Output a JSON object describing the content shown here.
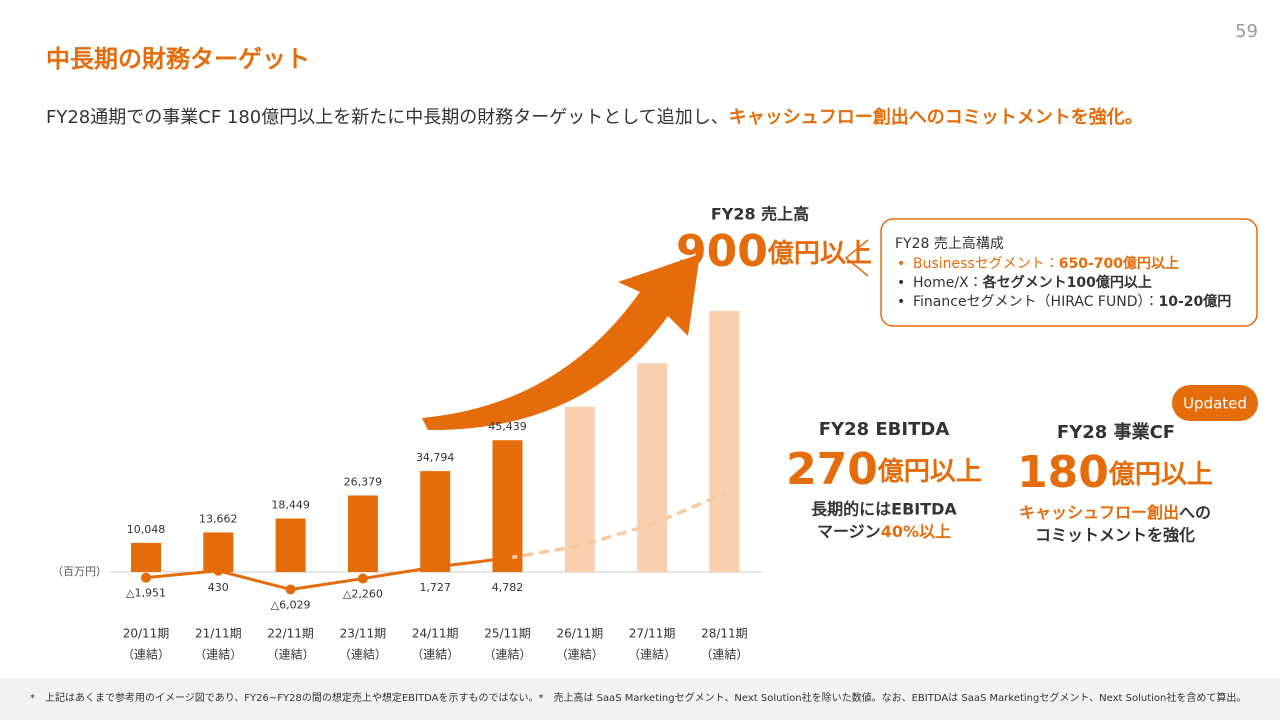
{
  "page_number": "59",
  "title": "中長期の財務ターゲット",
  "lead": {
    "text": "FY28通期での事業CF 180億円以上を新たに中長期の財務ターゲットとして追加し、",
    "highlight": "キャッシュフロー創出へのコミットメントを強化。"
  },
  "revenue_target": {
    "label": "FY28 売上高",
    "amount": "900",
    "unit": "億円以上"
  },
  "breakdown": {
    "title": "FY28 売上高構成",
    "items": [
      {
        "name": "Businessセグメント：",
        "value": "650-700億円以上"
      },
      {
        "name": "Home/X：",
        "value": "各セグメント100億円以上"
      },
      {
        "name": "Financeセグメント（HIRAC FUND）：",
        "value": "10-20億円"
      }
    ]
  },
  "ebitda": {
    "label": "FY28 EBITDA",
    "amount": "270",
    "unit": "億円以上",
    "note_line1": "長期的にはEBITDA",
    "note_line2": "マージン",
    "note_line2_highlight": "40%以上"
  },
  "cash_flow": {
    "label": "FY28 事業CF",
    "amount": "180",
    "unit": "億円以上",
    "note_highlight": "キャッシュフロー創出",
    "note_line1_rest": "への",
    "note_line2": "コミットメントを強化",
    "badge": "Updated"
  },
  "footnote": "*　上記はあくまで参考用のイメージ図であり、FY26~FY28の間の想定売上や想定EBITDAを示すものではない。*　売上高は SaaS Marketingセグメント、Next Solution社を除いた数値。なお、EBITDAは SaaS Marketingセグメント、Next Solution社を含めて算出。",
  "chart_data": {
    "type": "bar-line",
    "unit_label": "（百万円）",
    "categories": [
      "20/11期",
      "21/11期",
      "22/11期",
      "23/11期",
      "24/11期",
      "25/11期",
      "26/11期",
      "27/11期",
      "28/11期"
    ],
    "category_notes": [
      "（連結）",
      "（連結）",
      "（連結）",
      "（連結）",
      "（連結）",
      "（連結）",
      "（連結）",
      "（連結）",
      "（連結）"
    ],
    "series": [
      {
        "kind": "bar",
        "color": "#e46c0a",
        "projected_color": "#f8d0b0",
        "values": [
          10048,
          13662,
          18449,
          26379,
          34794,
          45439,
          57000,
          72000,
          90000
        ],
        "value_labels": [
          "10,048",
          "13,662",
          "18,449",
          "26,379",
          "34,794",
          "45,439",
          null,
          null,
          null
        ]
      },
      {
        "kind": "line",
        "color": "#e46c0a",
        "values": [
          -1951,
          430,
          -6029,
          -2260,
          1727,
          4782,
          null,
          null,
          null
        ],
        "value_labels": [
          "△1,951",
          "430",
          "△6,029",
          "△2,260",
          "1,727",
          "4,782",
          null,
          null,
          null
        ]
      },
      {
        "kind": "dashed-line",
        "color": "#f8c9a0",
        "values": [
          null,
          null,
          null,
          null,
          null,
          4782,
          9000,
          16500,
          27000
        ]
      }
    ]
  }
}
